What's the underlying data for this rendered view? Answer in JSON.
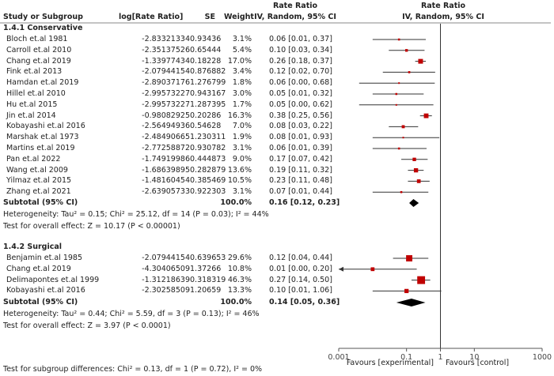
{
  "header": {
    "study_col": "Study or Subgroup",
    "logrr_col": "log[Rate Ratio]",
    "se_col": "SE",
    "weight_col": "Weight",
    "rr_col_top": "Rate Ratio",
    "rr_col_bottom": "IV, Random, 95% CI",
    "plot_col_top": "Rate Ratio",
    "plot_col_bottom": "IV, Random, 95% CI"
  },
  "subgroups": [
    {
      "title": "1.4.1 Conservative",
      "studies": [
        {
          "name": "Bloch et.al 1981",
          "logrr": "-2.83321334",
          "se": "0.93436",
          "weight": "3.1%",
          "ci_text": "0.06 [0.01, 0.37]"
        },
        {
          "name": "Carroll et.al 2010",
          "logrr": "-2.35137526",
          "se": "0.65444",
          "weight": "5.4%",
          "ci_text": "0.10 [0.03, 0.34]"
        },
        {
          "name": "Chang et.al 2019",
          "logrr": "-1.33977434",
          "se": "0.18228",
          "weight": "17.0%",
          "ci_text": "0.26 [0.18, 0.37]"
        },
        {
          "name": "Fink et.al 2013",
          "logrr": "-2.07944154",
          "se": "0.876882",
          "weight": "3.4%",
          "ci_text": "0.12 [0.02, 0.70]"
        },
        {
          "name": "Hamdan et.al 2019",
          "logrr": "-2.89037176",
          "se": "1.276799",
          "weight": "1.8%",
          "ci_text": "0.06 [0.00, 0.68]"
        },
        {
          "name": "Hillel et.al 2010",
          "logrr": "-2.99573227",
          "se": "0.943167",
          "weight": "3.0%",
          "ci_text": "0.05 [0.01, 0.32]"
        },
        {
          "name": "Hu et.al 2015",
          "logrr": "-2.99573227",
          "se": "1.287395",
          "weight": "1.7%",
          "ci_text": "0.05 [0.00, 0.62]"
        },
        {
          "name": "Jin et.al 2014",
          "logrr": "-0.98082925",
          "se": "0.20286",
          "weight": "16.3%",
          "ci_text": "0.38 [0.25, 0.56]"
        },
        {
          "name": "Kobayashi et.al 2016",
          "logrr": "-2.56494936",
          "se": "0.54628",
          "weight": "7.0%",
          "ci_text": "0.08 [0.03, 0.22]"
        },
        {
          "name": "Marshak et.al 1973",
          "logrr": "-2.48490665",
          "se": "1.230311",
          "weight": "1.9%",
          "ci_text": "0.08 [0.01, 0.93]"
        },
        {
          "name": "Martins et.al 2019",
          "logrr": "-2.77258872",
          "se": "0.930782",
          "weight": "3.1%",
          "ci_text": "0.06 [0.01, 0.39]"
        },
        {
          "name": "Pan et.al 2022",
          "logrr": "-1.74919986",
          "se": "0.444873",
          "weight": "9.0%",
          "ci_text": "0.17 [0.07, 0.42]"
        },
        {
          "name": "Wang et.al 2009",
          "logrr": "-1.68639895",
          "se": "0.282879",
          "weight": "13.6%",
          "ci_text": "0.19 [0.11, 0.32]"
        },
        {
          "name": "Yilmaz et.al 2015",
          "logrr": "-1.48160454",
          "se": "0.385469",
          "weight": "10.5%",
          "ci_text": "0.23 [0.11, 0.48]"
        },
        {
          "name": "Zhang et.al 2021",
          "logrr": "-2.63905733",
          "se": "0.922303",
          "weight": "3.1%",
          "ci_text": "0.07 [0.01, 0.44]"
        }
      ],
      "subtotal": {
        "label": "Subtotal (95% CI)",
        "weight": "100.0%",
        "ci_text": "0.16 [0.12, 0.23]"
      },
      "heterogeneity": "Heterogeneity: Tau² = 0.15; Chi² = 25.12, df = 14 (P = 0.03); I² = 44%",
      "overall_effect": "Test for overall effect: Z = 10.17 (P < 0.00001)"
    },
    {
      "title": "1.4.2 Surgical",
      "studies": [
        {
          "name": "Benjamin et.al 1985",
          "logrr": "-2.07944154",
          "se": "0.639653",
          "weight": "29.6%",
          "ci_text": "0.12 [0.04, 0.44]"
        },
        {
          "name": "Chang et.al 2019",
          "logrr": "-4.30406509",
          "se": "1.37266",
          "weight": "10.8%",
          "ci_text": "0.01 [0.00, 0.20]"
        },
        {
          "name": "Delimapontes et.al 1999",
          "logrr": "-1.31218639",
          "se": "0.318319",
          "weight": "46.3%",
          "ci_text": "0.27 [0.14, 0.50]"
        },
        {
          "name": "Kobayashi et.al 2016",
          "logrr": "-2.30258509",
          "se": "1.20659",
          "weight": "13.3%",
          "ci_text": "0.10 [0.01, 1.06]"
        }
      ],
      "subtotal": {
        "label": "Subtotal (95% CI)",
        "weight": "100.0%",
        "ci_text": "0.14 [0.05, 0.36]"
      },
      "heterogeneity": "Heterogeneity: Tau² = 0.44; Chi² = 5.59, df = 3 (P = 0.13); I² = 46%",
      "overall_effect": "Test for overall effect: Z = 3.97 (P < 0.0001)"
    }
  ],
  "subgroup_test": "Test for subgroup differences: Chi² = 0.13, df = 1 (P = 0.72), I² = 0%",
  "colors": {
    "marker": "#c00000",
    "line": "#333333",
    "axis": "#555555"
  },
  "chart_data": {
    "type": "forest",
    "scale": "log",
    "xlim": [
      0.001,
      1000
    ],
    "ticks": [
      0.001,
      0.1,
      1,
      10,
      1000
    ],
    "tick_labels": [
      "0.001",
      "0.1",
      "1",
      "10",
      "1000"
    ],
    "favours_left": "Favours [experimental]",
    "favours_right": "Favours [control]",
    "groups": [
      {
        "points": [
          {
            "rr": 0.06,
            "lo": 0.01,
            "hi": 0.37,
            "w": 3.1
          },
          {
            "rr": 0.1,
            "lo": 0.03,
            "hi": 0.34,
            "w": 5.4
          },
          {
            "rr": 0.26,
            "lo": 0.18,
            "hi": 0.37,
            "w": 17.0
          },
          {
            "rr": 0.12,
            "lo": 0.02,
            "hi": 0.7,
            "w": 3.4
          },
          {
            "rr": 0.06,
            "lo": 0.004,
            "hi": 0.68,
            "w": 1.8
          },
          {
            "rr": 0.05,
            "lo": 0.01,
            "hi": 0.32,
            "w": 3.0
          },
          {
            "rr": 0.05,
            "lo": 0.004,
            "hi": 0.62,
            "w": 1.7
          },
          {
            "rr": 0.38,
            "lo": 0.25,
            "hi": 0.56,
            "w": 16.3
          },
          {
            "rr": 0.08,
            "lo": 0.03,
            "hi": 0.22,
            "w": 7.0
          },
          {
            "rr": 0.08,
            "lo": 0.01,
            "hi": 0.93,
            "w": 1.9
          },
          {
            "rr": 0.06,
            "lo": 0.01,
            "hi": 0.39,
            "w": 3.1
          },
          {
            "rr": 0.17,
            "lo": 0.07,
            "hi": 0.42,
            "w": 9.0
          },
          {
            "rr": 0.19,
            "lo": 0.11,
            "hi": 0.32,
            "w": 13.6
          },
          {
            "rr": 0.23,
            "lo": 0.11,
            "hi": 0.48,
            "w": 10.5
          },
          {
            "rr": 0.07,
            "lo": 0.01,
            "hi": 0.44,
            "w": 3.1
          }
        ],
        "subtotal": {
          "rr": 0.16,
          "lo": 0.12,
          "hi": 0.23
        }
      },
      {
        "points": [
          {
            "rr": 0.12,
            "lo": 0.04,
            "hi": 0.44,
            "w": 29.6
          },
          {
            "rr": 0.01,
            "lo": 0.0009,
            "hi": 0.2,
            "w": 10.8,
            "arrow_left": true
          },
          {
            "rr": 0.27,
            "lo": 0.14,
            "hi": 0.5,
            "w": 46.3
          },
          {
            "rr": 0.1,
            "lo": 0.01,
            "hi": 1.06,
            "w": 13.3
          }
        ],
        "subtotal": {
          "rr": 0.14,
          "lo": 0.05,
          "hi": 0.36
        }
      }
    ]
  }
}
